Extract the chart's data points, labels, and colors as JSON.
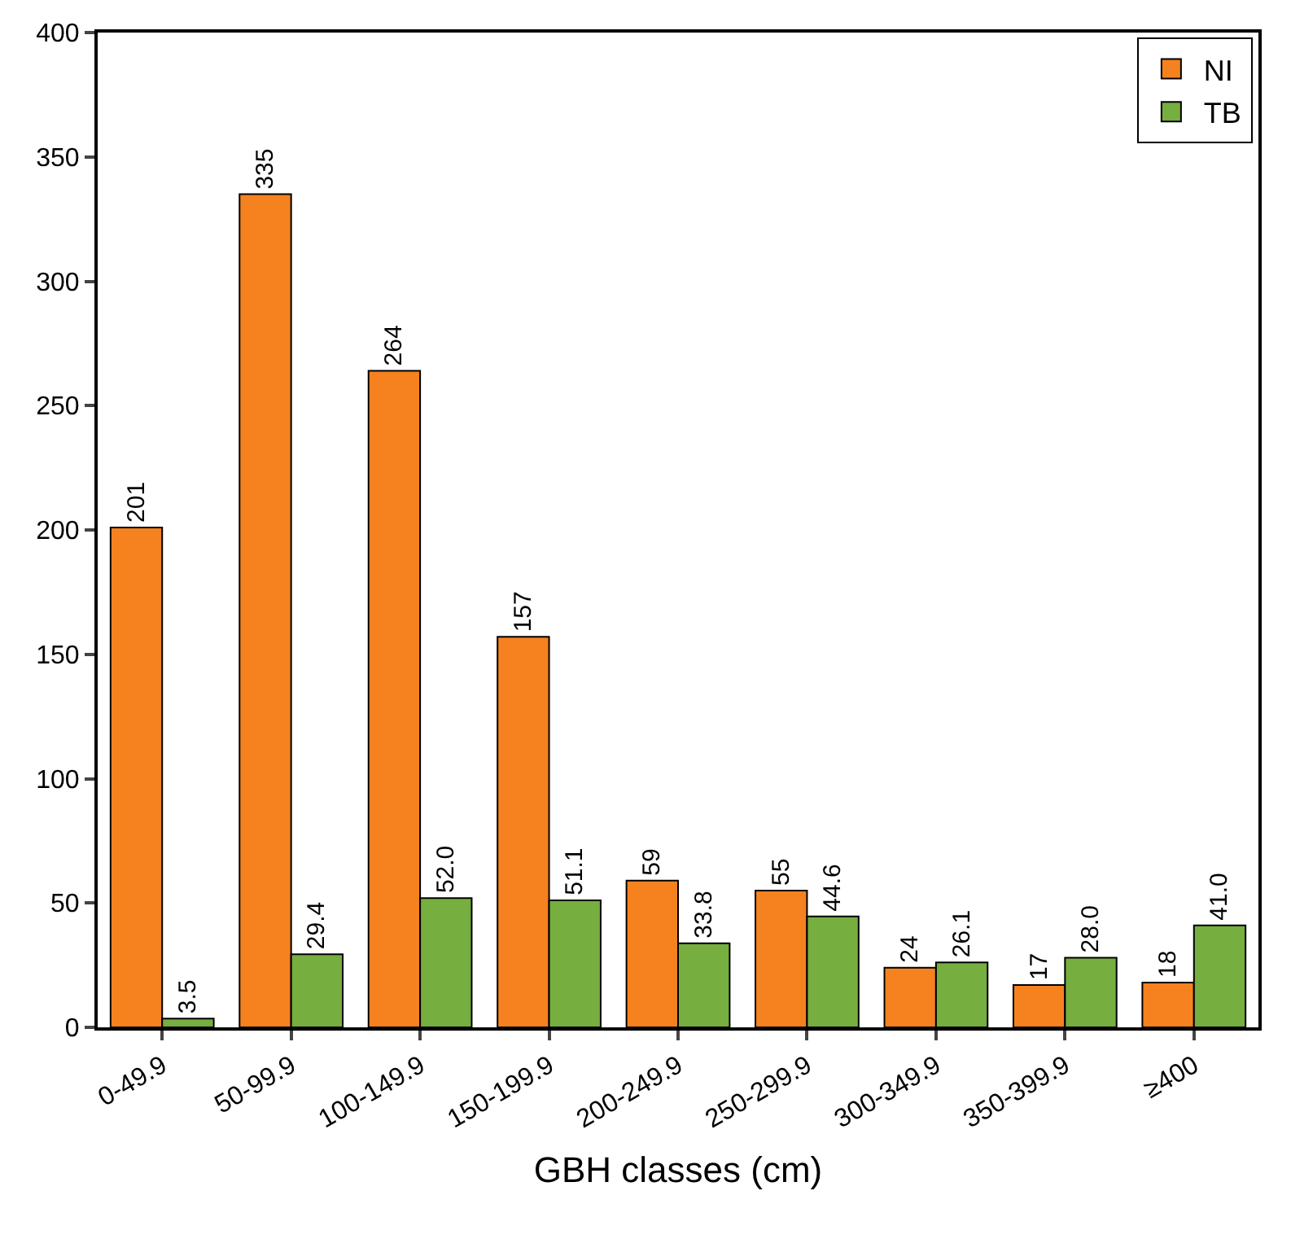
{
  "chart_data": {
    "type": "bar",
    "xlabel": "GBH classes (cm)",
    "categories": [
      "0-49.9",
      "50-99.9",
      "100-149.9",
      "150-199.9",
      "200-249.9",
      "250-299.9",
      "300-349.9",
      "350-399.9",
      "≥400"
    ],
    "series": [
      {
        "name": "NI",
        "color": "#f5821f",
        "values": [
          201,
          335,
          264,
          157,
          59,
          55,
          24,
          17,
          18
        ],
        "value_labels": [
          "201",
          "335",
          "264",
          "157",
          "59",
          "55",
          "24",
          "17",
          "18"
        ]
      },
      {
        "name": "TB",
        "color": "#76ae3f",
        "values": [
          3.5,
          29.4,
          52.0,
          51.1,
          33.8,
          44.6,
          26.1,
          28.0,
          41.0
        ],
        "value_labels": [
          "3.5",
          "29.4",
          "52.0",
          "51.1",
          "33.8",
          "44.6",
          "26.1",
          "28.0",
          "41.0"
        ]
      }
    ],
    "ylim": [
      0,
      400
    ],
    "yticks": [
      0,
      50,
      100,
      150,
      200,
      250,
      300,
      350,
      400
    ],
    "legend": "top right"
  }
}
